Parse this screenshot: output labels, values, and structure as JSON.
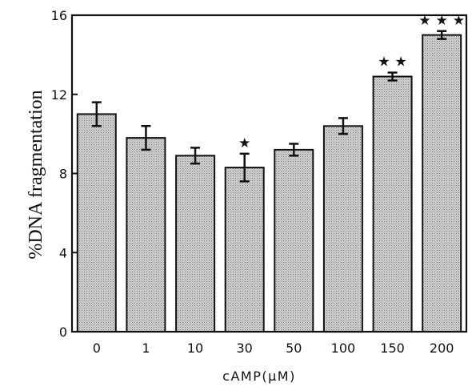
{
  "chart_data": {
    "type": "bar",
    "categories": [
      "0",
      "1",
      "10",
      "30",
      "50",
      "100",
      "150",
      "200"
    ],
    "values": [
      11.0,
      9.8,
      8.9,
      8.3,
      9.2,
      10.4,
      12.9,
      15.0
    ],
    "errors": [
      0.6,
      0.6,
      0.4,
      0.7,
      0.3,
      0.4,
      0.2,
      0.2
    ],
    "significance": [
      "",
      "",
      "",
      "★",
      "",
      "",
      "★★",
      "★★★"
    ],
    "xlabel": "cAMP(µM)",
    "ylabel": "%DNA fragmentation",
    "ylim": [
      0,
      16
    ],
    "yticks": [
      0,
      4,
      8,
      12,
      16
    ],
    "bar_fill": "#c8c8c8",
    "grid": false
  }
}
